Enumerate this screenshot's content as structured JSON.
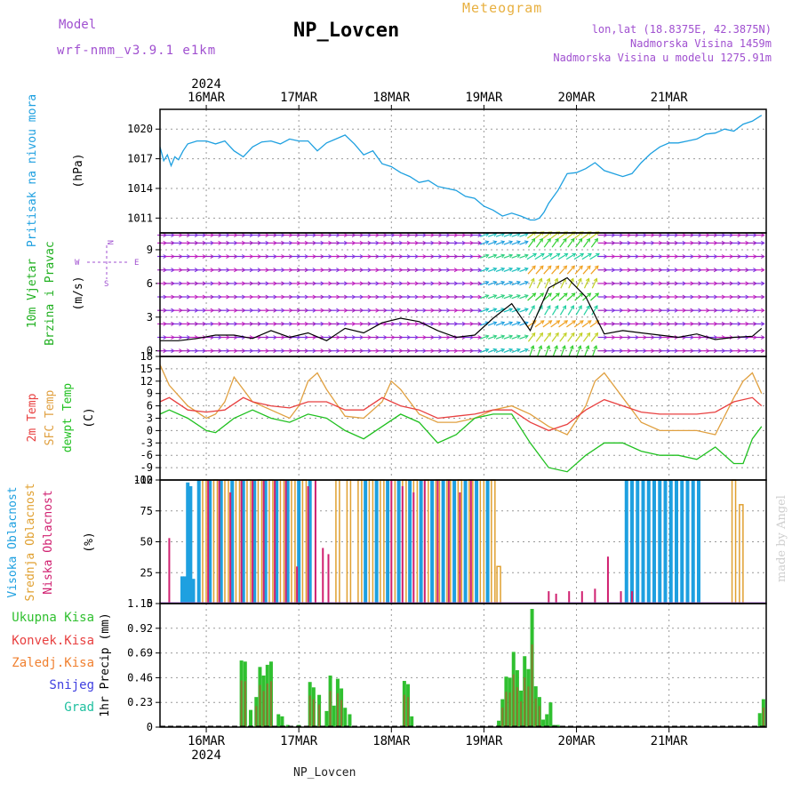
{
  "header": {
    "model_label": "Model",
    "model_name": "wrf-nmm_v3.9.1 e1km",
    "station": "NP_Lovcen",
    "product": "Meteogram",
    "lonlat": "lon,lat (18.8375E, 42.3875N)",
    "elevation": "Nadmorska Visina 1459m",
    "model_elevation": "Nadmorska Visina u modelu 1275.91m",
    "footer_station": "NP_Lovcen",
    "signature": "made by Angel"
  },
  "colors": {
    "pressure": "#1ea0e0",
    "wind_label": "#20b020",
    "temp2m": "#e84040",
    "sfc": "#e0a040",
    "dew": "#20c020",
    "high_cloud": "#1ea0e0",
    "mid_cloud": "#e0a030",
    "low_cloud": "#d02070",
    "total_precip": "#30c030",
    "convective": "#e84040",
    "frozen": "#f08030",
    "snow": "#4040e0",
    "graupel": "#20c0a0",
    "header_purple": "#a050d0",
    "header_gold": "#e8b040"
  },
  "time_axis": {
    "year": "2024",
    "days": [
      "16MAR",
      "17MAR",
      "18MAR",
      "19MAR",
      "20MAR",
      "21MAR"
    ],
    "day_positions": [
      0.5,
      1.5,
      2.5,
      3.5,
      4.5,
      5.5
    ],
    "range": [
      0,
      6.55
    ]
  },
  "chart_data": [
    {
      "type": "line",
      "id": "pressure",
      "ylabel_main": "Pritisak na nivou mora",
      "ylabel_unit": "(hPa)",
      "yticks": [
        1011,
        1014,
        1017,
        1020
      ],
      "ylim": [
        1009.5,
        1022
      ],
      "grid": true,
      "series": [
        {
          "x": [
            0,
            0.04,
            0.08,
            0.12,
            0.16,
            0.2,
            0.25,
            0.3,
            0.4,
            0.5,
            0.6,
            0.7,
            0.8,
            0.9,
            1.0,
            1.1,
            1.2,
            1.3,
            1.4,
            1.5,
            1.6,
            1.7,
            1.8,
            1.9,
            2.0,
            2.1,
            2.2,
            2.3,
            2.4,
            2.5,
            2.6,
            2.7,
            2.8,
            2.9,
            3.0,
            3.1,
            3.2,
            3.3,
            3.4,
            3.5,
            3.6,
            3.7,
            3.8,
            3.9,
            4.0,
            4.05,
            4.1,
            4.15,
            4.2,
            4.3,
            4.4,
            4.5,
            4.6,
            4.7,
            4.8,
            4.9,
            5.0,
            5.1,
            5.2,
            5.3,
            5.4,
            5.5,
            5.6,
            5.7,
            5.8,
            5.9,
            6.0,
            6.1,
            6.2,
            6.3,
            6.4,
            6.5
          ],
          "y": [
            1018.2,
            1016.8,
            1017.4,
            1016.3,
            1017.2,
            1016.9,
            1017.8,
            1018.5,
            1018.8,
            1018.8,
            1018.5,
            1018.8,
            1017.8,
            1017.2,
            1018.2,
            1018.7,
            1018.8,
            1018.5,
            1019.0,
            1018.8,
            1018.8,
            1017.8,
            1018.6,
            1019.0,
            1019.4,
            1018.5,
            1017.4,
            1017.8,
            1016.5,
            1016.2,
            1015.6,
            1015.2,
            1014.6,
            1014.8,
            1014.2,
            1014.0,
            1013.8,
            1013.2,
            1013.0,
            1012.2,
            1011.8,
            1011.2,
            1011.5,
            1011.2,
            1010.8,
            1010.8,
            1011.0,
            1011.6,
            1012.5,
            1013.8,
            1015.5,
            1015.6,
            1016.0,
            1016.6,
            1015.8,
            1015.5,
            1015.2,
            1015.5,
            1016.6,
            1017.5,
            1018.2,
            1018.6,
            1018.6,
            1018.8,
            1019.0,
            1019.5,
            1019.6,
            1020.0,
            1019.8,
            1020.5,
            1020.8,
            1021.4
          ]
        }
      ]
    },
    {
      "type": "barbs",
      "id": "wind",
      "ylabel_main": "10m Vjetar",
      "ylabel_sub": "Brzina i Pravac",
      "ylabel_unit": "(m/s)",
      "compass": {
        "n": "N",
        "w": "W",
        "e": "E",
        "s": "S"
      },
      "yticks": [
        0,
        3,
        6,
        9
      ],
      "ylim": [
        -0.5,
        10.5
      ],
      "grid": true,
      "series": [
        {
          "name": "speed",
          "x": [
            0,
            0.2,
            0.4,
            0.6,
            0.8,
            1.0,
            1.2,
            1.4,
            1.6,
            1.8,
            2.0,
            2.2,
            2.4,
            2.6,
            2.8,
            3.0,
            3.2,
            3.4,
            3.6,
            3.8,
            4.0,
            4.2,
            4.4,
            4.6,
            4.8,
            5.0,
            5.2,
            5.4,
            5.6,
            5.8,
            6.0,
            6.2,
            6.4,
            6.5
          ],
          "y": [
            0.9,
            0.9,
            1.1,
            1.4,
            1.4,
            1.1,
            1.8,
            1.2,
            1.6,
            0.9,
            2.0,
            1.6,
            2.5,
            2.9,
            2.6,
            1.8,
            1.2,
            1.4,
            2.9,
            4.2,
            1.8,
            5.6,
            6.5,
            4.8,
            1.5,
            1.8,
            1.6,
            1.4,
            1.2,
            1.5,
            1.0,
            1.2,
            1.3,
            2.0
          ]
        }
      ]
    },
    {
      "type": "line",
      "id": "temperature",
      "ylabel_main": "2m Temp",
      "ylabel_sub": "SFC Temp",
      "ylabel_sub2": "dewpt Temp",
      "ylabel_unit": "(C)",
      "yticks": [
        -12,
        -9,
        -6,
        -3,
        0,
        3,
        6,
        9,
        12,
        15,
        18
      ],
      "ylim": [
        -12,
        18
      ],
      "grid": true,
      "series": [
        {
          "name": "2m Temp",
          "x": [
            0,
            0.1,
            0.3,
            0.5,
            0.7,
            0.9,
            1.0,
            1.2,
            1.4,
            1.6,
            1.8,
            2.0,
            2.2,
            2.4,
            2.6,
            2.8,
            3.0,
            3.2,
            3.4,
            3.6,
            3.8,
            4.0,
            4.2,
            4.4,
            4.6,
            4.8,
            5.0,
            5.2,
            5.4,
            5.6,
            5.8,
            6.0,
            6.2,
            6.4,
            6.5
          ],
          "y": [
            7,
            8,
            5,
            4.5,
            5,
            8,
            7,
            6,
            5.5,
            7,
            7,
            5,
            5,
            8,
            6,
            5,
            3,
            3.5,
            4,
            5,
            5,
            2,
            0,
            1.5,
            5,
            7.5,
            6,
            4.5,
            4,
            4,
            4,
            4.5,
            7,
            8,
            6
          ]
        },
        {
          "name": "SFC Temp",
          "x": [
            0,
            0.1,
            0.3,
            0.5,
            0.6,
            0.7,
            0.8,
            0.9,
            1.0,
            1.2,
            1.4,
            1.5,
            1.6,
            1.7,
            1.8,
            2.0,
            2.2,
            2.4,
            2.5,
            2.6,
            2.8,
            3.0,
            3.2,
            3.4,
            3.6,
            3.8,
            4.0,
            4.2,
            4.4,
            4.6,
            4.7,
            4.8,
            5.0,
            5.2,
            5.4,
            5.6,
            5.8,
            6.0,
            6.2,
            6.3,
            6.4,
            6.5
          ],
          "y": [
            16,
            11,
            6,
            3,
            4,
            7,
            13,
            10,
            7,
            5,
            3,
            6,
            12,
            14,
            10,
            3.5,
            3,
            7,
            12,
            10,
            4,
            2,
            2,
            3,
            5,
            6,
            4,
            1,
            -1,
            6,
            12,
            14,
            8,
            2,
            0,
            0,
            0,
            -1,
            8,
            12,
            14,
            9
          ]
        },
        {
          "name": "dewpt Temp",
          "x": [
            0,
            0.1,
            0.3,
            0.5,
            0.6,
            0.8,
            1.0,
            1.2,
            1.4,
            1.6,
            1.8,
            2.0,
            2.2,
            2.4,
            2.6,
            2.8,
            3.0,
            3.2,
            3.4,
            3.6,
            3.8,
            4.0,
            4.2,
            4.4,
            4.6,
            4.8,
            5.0,
            5.2,
            5.4,
            5.6,
            5.8,
            6.0,
            6.2,
            6.3,
            6.4,
            6.5
          ],
          "y": [
            4,
            5,
            3,
            0,
            -0.5,
            3,
            5,
            3,
            2,
            4,
            3,
            0,
            -2,
            1,
            4,
            2,
            -3,
            -1,
            3,
            4,
            4,
            -3,
            -9,
            -10,
            -6,
            -3,
            -3,
            -5,
            -6,
            -6,
            -7,
            -4,
            -8,
            -8,
            -2,
            1
          ]
        }
      ]
    },
    {
      "type": "bar",
      "id": "cloud",
      "ylabel_main": "Visoka Oblacnost",
      "ylabel_sub": "Srednja Oblacnost",
      "ylabel_sub2": "Niska Oblacnost",
      "ylabel_unit": "(%)",
      "yticks": [
        0,
        25,
        50,
        75,
        100
      ],
      "ylim": [
        0,
        100
      ],
      "grid": true,
      "series": [
        {
          "name": "Visoka Oblacnost",
          "x": [
            0.24,
            0.27,
            0.3,
            0.33,
            0.36,
            0.42,
            0.54,
            0.66,
            0.78,
            0.9,
            1.02,
            1.14,
            1.26,
            1.38,
            1.5,
            1.62,
            2.22,
            2.34,
            2.46,
            2.58,
            2.7,
            2.82,
            2.94,
            3.06,
            3.18,
            3.3,
            3.42,
            3.54,
            5.04,
            5.1,
            5.16,
            5.22,
            5.28,
            5.34,
            5.4,
            5.46,
            5.52,
            5.58,
            5.64,
            5.7,
            5.76,
            5.82
          ],
          "y": [
            22,
            22,
            98,
            95,
            20,
            100,
            100,
            100,
            100,
            100,
            100,
            100,
            100,
            100,
            100,
            100,
            100,
            100,
            100,
            100,
            100,
            100,
            100,
            100,
            100,
            100,
            100,
            100,
            100,
            100,
            100,
            100,
            100,
            100,
            100,
            100,
            100,
            100,
            100,
            100,
            100,
            100
          ]
        },
        {
          "name": "Srednja Oblacnost",
          "x": [
            0.48,
            0.6,
            0.72,
            0.84,
            0.96,
            1.08,
            1.2,
            1.32,
            1.44,
            1.56,
            1.92,
            2.04,
            2.16,
            2.28,
            2.4,
            2.52,
            2.64,
            2.76,
            2.88,
            3.0,
            3.12,
            3.24,
            3.36,
            3.48,
            3.6,
            3.66,
            6.2,
            6.28
          ],
          "y": [
            100,
            100,
            100,
            100,
            100,
            100,
            100,
            100,
            100,
            100,
            100,
            100,
            100,
            100,
            100,
            100,
            100,
            100,
            100,
            100,
            100,
            100,
            100,
            100,
            100,
            30,
            100,
            80
          ]
        },
        {
          "name": "Niska Oblacnost",
          "x": [
            0.1,
            0.52,
            0.64,
            0.76,
            0.88,
            1.0,
            1.12,
            1.24,
            1.36,
            1.48,
            1.6,
            1.68,
            1.76,
            1.82,
            2.5,
            2.62,
            2.74,
            2.86,
            3.0,
            3.12,
            3.24,
            3.36,
            4.2,
            4.28,
            4.42,
            4.56,
            4.7,
            4.84,
            4.98,
            5.1
          ],
          "y": [
            53,
            100,
            100,
            90,
            100,
            100,
            100,
            100,
            100,
            30,
            95,
            100,
            45,
            40,
            100,
            95,
            90,
            100,
            100,
            100,
            90,
            100,
            10,
            8,
            10,
            10,
            12,
            38,
            10,
            10
          ]
        }
      ]
    },
    {
      "type": "bar",
      "id": "precip",
      "legend": [
        "Ukupna Kisa",
        "Konvek.Kisa",
        "Zaledj.Kisa",
        "Snijeg",
        "Grad"
      ],
      "ylabel_unit": "1hr Precip (mm)",
      "yticks": [
        0,
        0.23,
        0.46,
        0.69,
        0.92,
        1.15
      ],
      "ylim": [
        0,
        1.15
      ],
      "grid": true,
      "series": [
        {
          "name": "Ukupna Kisa",
          "x": [
            0.88,
            0.92,
            0.98,
            1.04,
            1.08,
            1.12,
            1.16,
            1.2,
            1.28,
            1.32,
            1.38,
            1.5,
            1.62,
            1.66,
            1.72,
            1.8,
            1.84,
            1.88,
            1.92,
            1.96,
            2.0,
            2.05,
            2.64,
            2.68,
            2.72,
            3.66,
            3.7,
            3.74,
            3.78,
            3.82,
            3.86,
            3.9,
            3.94,
            3.98,
            4.02,
            4.06,
            4.1,
            4.14,
            4.18,
            4.22,
            4.26,
            4.3,
            6.48,
            6.52
          ],
          "y": [
            0.62,
            0.61,
            0.16,
            0.28,
            0.56,
            0.48,
            0.58,
            0.61,
            0.12,
            0.1,
            0.02,
            0.02,
            0.42,
            0.37,
            0.3,
            0.15,
            0.48,
            0.2,
            0.45,
            0.36,
            0.18,
            0.12,
            0.43,
            0.4,
            0.1,
            0.06,
            0.26,
            0.47,
            0.46,
            0.7,
            0.53,
            0.34,
            0.66,
            0.54,
            1.1,
            0.38,
            0.28,
            0.07,
            0.12,
            0.23,
            0.02,
            0.02,
            0.13,
            0.26
          ]
        }
      ]
    }
  ]
}
